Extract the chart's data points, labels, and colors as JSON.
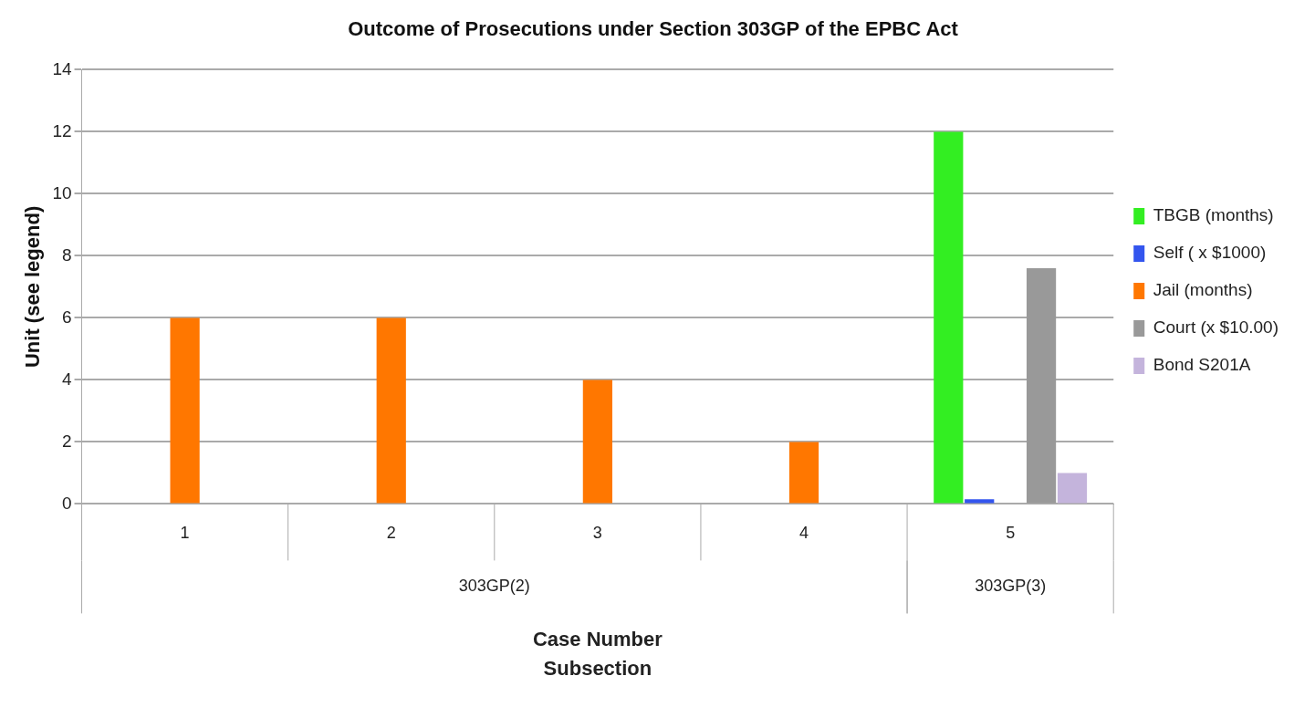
{
  "chart_data": {
    "type": "bar",
    "title": "Outcome of Prosecutions under Section 303GP of the EPBC Act",
    "xlabel": "Case Number\nSubsection",
    "ylabel": "Unit (see legend)",
    "categories": [
      "1",
      "2",
      "3",
      "4",
      "5"
    ],
    "series": [
      {
        "name": "TBGB (months)",
        "color": "#33ee22",
        "values": [
          0,
          0,
          0,
          0,
          12
        ]
      },
      {
        "name": "Self ( x $1000)",
        "color": "#3355ee",
        "values": [
          0,
          0,
          0,
          0,
          0.15
        ]
      },
      {
        "name": "Jail (months)",
        "color": "#ff7700",
        "values": [
          6,
          6,
          4,
          2,
          0
        ]
      },
      {
        "name": "Court (x $10.00)",
        "color": "#999999",
        "values": [
          0,
          0,
          0,
          0,
          7.6
        ]
      },
      {
        "name": "Bond S201A",
        "color": "#c4b4dc",
        "values": [
          0,
          0,
          0,
          0,
          1
        ]
      }
    ],
    "annotations": [
      "303GP(2)",
      "303GP(3)"
    ],
    "ylim": [
      0,
      14
    ],
    "yticks": [
      0,
      2,
      4,
      6,
      8,
      10,
      12,
      14
    ],
    "grid": "y",
    "legend": "right"
  }
}
